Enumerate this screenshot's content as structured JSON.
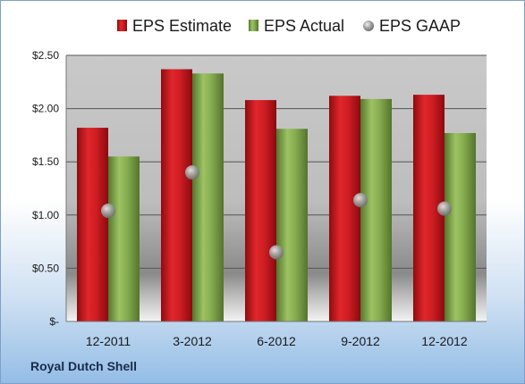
{
  "chart_data": {
    "type": "bar",
    "categories": [
      "12-2011",
      "3-2012",
      "6-2012",
      "9-2012",
      "12-2012"
    ],
    "series": [
      {
        "name": "EPS Estimate",
        "values": [
          1.82,
          2.37,
          2.08,
          2.12,
          2.13
        ],
        "color": "#c0181c"
      },
      {
        "name": "EPS Actual",
        "values": [
          1.55,
          2.33,
          1.81,
          2.09,
          1.77
        ],
        "color": "#7aa04a"
      },
      {
        "name": "EPS GAAP",
        "values": [
          1.04,
          1.4,
          0.65,
          1.14,
          1.06
        ],
        "color": "#a8a8a8",
        "marker": "circle"
      }
    ],
    "ylim": [
      0,
      2.5
    ],
    "y_ticks": [
      {
        "value": 0,
        "label": "$-"
      },
      {
        "value": 0.5,
        "label": "$0.50"
      },
      {
        "value": 1.0,
        "label": "$1.00"
      },
      {
        "value": 1.5,
        "label": "$1.50"
      },
      {
        "value": 2.0,
        "label": "$2.00"
      },
      {
        "value": 2.5,
        "label": "$2.50"
      }
    ],
    "legend_position": "top",
    "grid": true,
    "company": "Royal Dutch Shell"
  }
}
